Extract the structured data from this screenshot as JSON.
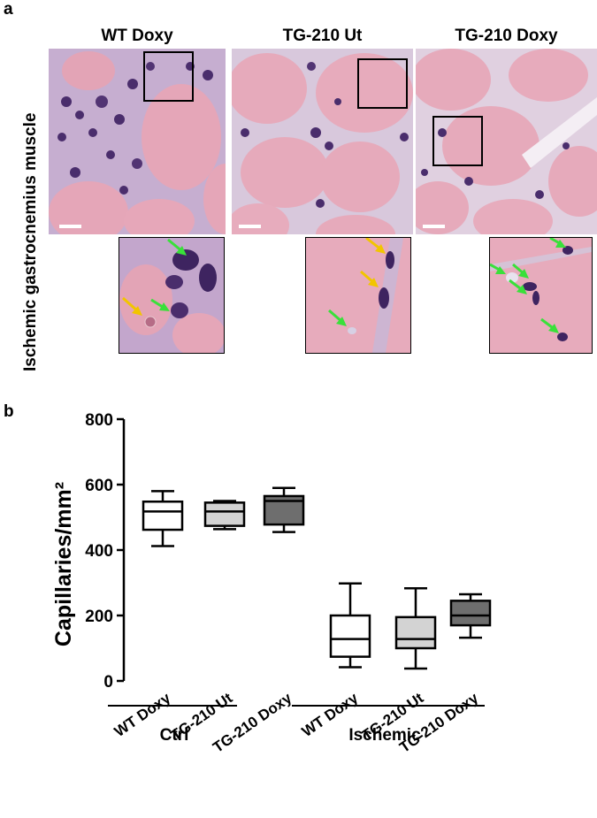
{
  "panel_a": {
    "letter": "a",
    "row_label": "Ischemic gastrocnemius muscle",
    "columns": [
      {
        "title": "WT Doxy"
      },
      {
        "title": "TG-210 Ut"
      },
      {
        "title": "TG-210 Doxy"
      }
    ],
    "arrow_colors": {
      "yellow": "#f2c500",
      "green": "#39e03a"
    },
    "tissue_colors": {
      "fiber": "#e5a6b8",
      "interstitium": "#c7b2cf",
      "nucleus": "#4a2d6c"
    }
  },
  "panel_b": {
    "letter": "b",
    "group_labels": [
      "Ctrl",
      "Ischemic"
    ],
    "chart_data": {
      "type": "box",
      "ylabel": "Capillaries/mm²",
      "ylim": [
        0,
        800
      ],
      "yticks": [
        0,
        200,
        400,
        600,
        800
      ],
      "categories": [
        "WT Doxy",
        "TG-210 Ut",
        "TG-210 Doxy",
        "WT Doxy",
        "TG-210 Ut",
        "TG-210 Doxy"
      ],
      "groups": [
        "Ctrl",
        "Ctrl",
        "Ctrl",
        "Ischemic",
        "Ischemic",
        "Ischemic"
      ],
      "boxes": [
        {
          "min": 412,
          "q1": 462,
          "median": 518,
          "q3": 548,
          "max": 580,
          "fill": "#ffffff"
        },
        {
          "min": 464,
          "q1": 474,
          "median": 518,
          "q3": 545,
          "max": 550,
          "fill": "#d3d3d3"
        },
        {
          "min": 455,
          "q1": 478,
          "median": 550,
          "q3": 565,
          "max": 590,
          "fill": "#6e6e6e"
        },
        {
          "min": 42,
          "q1": 74,
          "median": 128,
          "q3": 200,
          "max": 298,
          "fill": "#ffffff"
        },
        {
          "min": 38,
          "q1": 100,
          "median": 128,
          "q3": 195,
          "max": 283,
          "fill": "#d3d3d3"
        },
        {
          "min": 132,
          "q1": 170,
          "median": 200,
          "q3": 245,
          "max": 265,
          "fill": "#6e6e6e"
        }
      ]
    }
  }
}
